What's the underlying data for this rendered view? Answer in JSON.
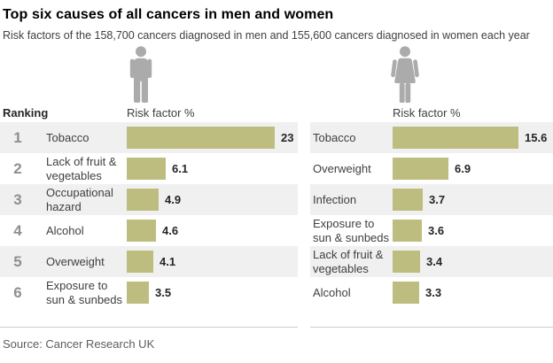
{
  "header": {
    "title": "Top six causes of all cancers in men and women",
    "subtitle": "Risk factors of the 158,700 cancers diagnosed in men and 155,600 cancers diagnosed in women each year"
  },
  "columns": {
    "ranking_label": "Ranking",
    "risk_factor_label": "Risk factor %"
  },
  "ranks": [
    "1",
    "2",
    "3",
    "4",
    "5",
    "6"
  ],
  "chart_data": [
    {
      "type": "bar",
      "name": "men",
      "icon": "man-icon",
      "axis_label": "Risk factor %",
      "categories": [
        "Tobacco",
        "Lack of fruit & vegetables",
        "Occupational hazard",
        "Alcohol",
        "Overweight",
        "Exposure to sun & sunbeds"
      ],
      "values": [
        23,
        6.1,
        4.9,
        4.6,
        4.1,
        3.5
      ],
      "xlim": [
        0,
        23
      ],
      "legend_position": "none",
      "grid": false
    },
    {
      "type": "bar",
      "name": "women",
      "icon": "woman-icon",
      "axis_label": "Risk factor %",
      "categories": [
        "Tobacco",
        "Overweight",
        "Infection",
        "Exposure to sun & sunbeds",
        "Lack of fruit & vegetables",
        "Alcohol"
      ],
      "values": [
        15.6,
        6.9,
        3.7,
        3.6,
        3.4,
        3.3
      ],
      "xlim": [
        0,
        15.6
      ],
      "legend_position": "none",
      "grid": false
    }
  ],
  "footer": {
    "source": "Source: Cancer Research UK"
  },
  "colors": {
    "bar": "#bebd80",
    "row_stripe": "#f0f0f0",
    "icon": "#ababab"
  }
}
